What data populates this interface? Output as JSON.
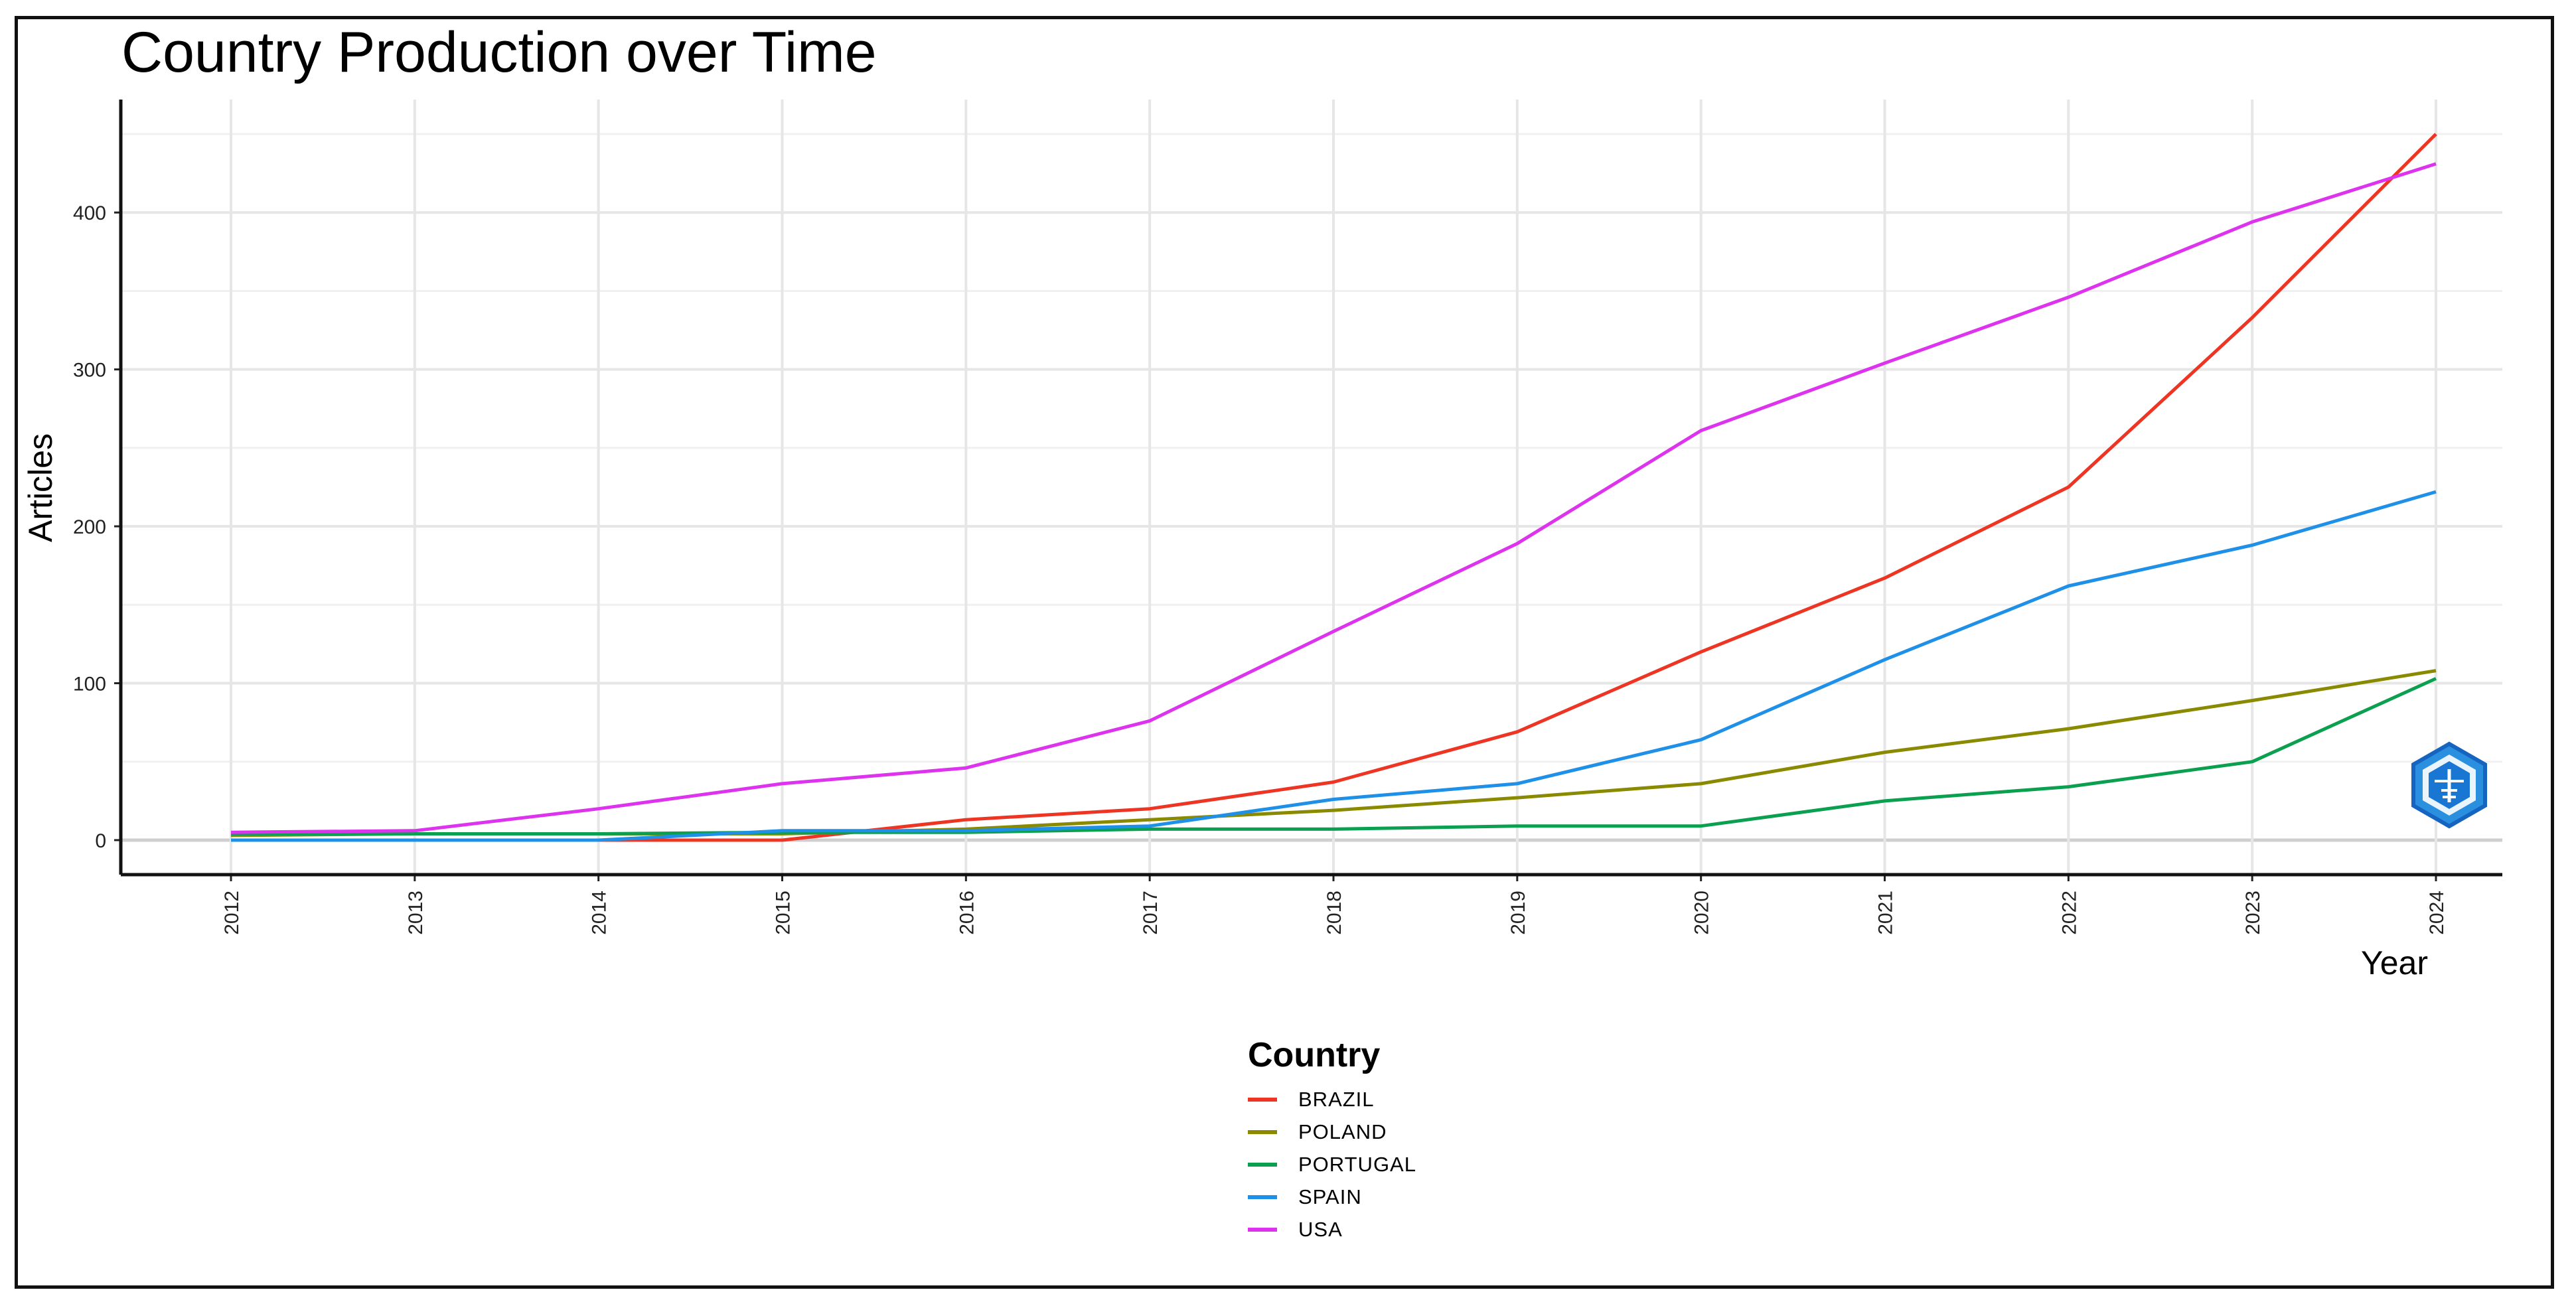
{
  "chart_data": {
    "type": "line",
    "title": "Country Production over Time",
    "xlabel": "Year",
    "ylabel": "Articles",
    "x": [
      2012,
      2013,
      2014,
      2015,
      2016,
      2017,
      2018,
      2019,
      2020,
      2021,
      2022,
      2023,
      2024
    ],
    "xtick_labels": [
      "2012",
      "2013",
      "2014",
      "2015",
      "2016",
      "2017",
      "2018",
      "2019",
      "2020",
      "2021",
      "2022",
      "2023",
      "2024"
    ],
    "yticks": [
      0,
      100,
      200,
      300,
      400
    ],
    "ytick_labels": [
      "0",
      "100",
      "200",
      "300",
      "400"
    ],
    "ylim": [
      -22,
      472
    ],
    "grid": true,
    "legend_title": "Country",
    "legend_position": "bottom",
    "series": [
      {
        "name": "BRAZIL",
        "color": "#ee3524",
        "values": [
          0,
          0,
          0,
          0,
          13,
          20,
          37,
          69,
          120,
          167,
          225,
          333,
          450
        ]
      },
      {
        "name": "POLAND",
        "color": "#8a8a00",
        "values": [
          3,
          4,
          4,
          4,
          7,
          13,
          19,
          27,
          36,
          56,
          71,
          89,
          108
        ]
      },
      {
        "name": "PORTUGAL",
        "color": "#0aa04f",
        "values": [
          4,
          4,
          4,
          5,
          5,
          7,
          7,
          9,
          9,
          25,
          34,
          50,
          103
        ]
      },
      {
        "name": "SPAIN",
        "color": "#1e90e8",
        "values": [
          0,
          0,
          0,
          6,
          6,
          9,
          26,
          36,
          64,
          115,
          162,
          188,
          222
        ]
      },
      {
        "name": "USA",
        "color": "#dd32ee",
        "values": [
          5,
          6,
          20,
          36,
          46,
          76,
          133,
          189,
          261,
          304,
          346,
          394,
          431
        ]
      }
    ]
  }
}
